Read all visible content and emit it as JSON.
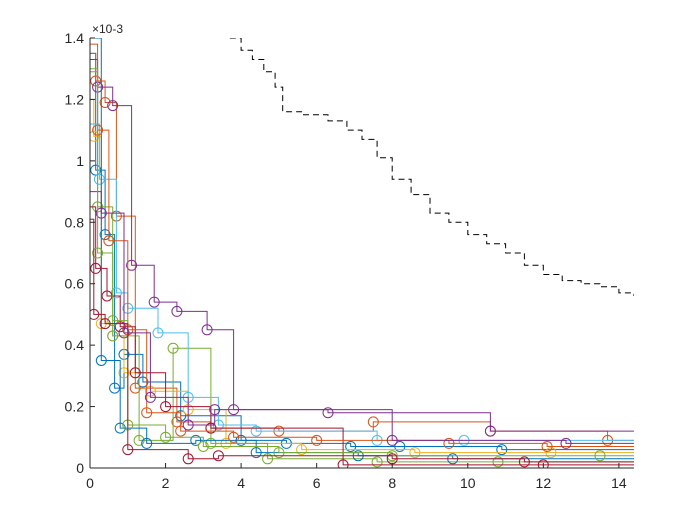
{
  "chart_data": {
    "type": "line",
    "title": "",
    "xlabel": "",
    "ylabel": "",
    "xlim": [
      0,
      14.4
    ],
    "ylim": [
      0,
      0.0014
    ],
    "y_exponent_label": "×10-3",
    "x_ticks": [
      0,
      2,
      4,
      6,
      8,
      10,
      12,
      14
    ],
    "x_tick_labels": [
      "0",
      "2",
      "4",
      "6",
      "8",
      "10",
      "12",
      "14"
    ],
    "y_ticks": [
      0,
      0.0002,
      0.0004,
      0.0006,
      0.0008,
      0.001,
      0.0012,
      0.0014
    ],
    "y_tick_labels": [
      "0",
      "0.2",
      "0.4",
      "0.6",
      "0.8",
      "1",
      "1.2",
      "1.4"
    ],
    "grid": false,
    "legend": "none",
    "line_style": "step-with-circle-markers",
    "colors": [
      "#0072BD",
      "#D95319",
      "#EDB120",
      "#7E2F8E",
      "#77AC30",
      "#4DBEEE",
      "#A2142F"
    ],
    "series": [
      {
        "color": "#0072BD",
        "x": [
          0,
          0.15,
          0.4,
          0.65,
          0.9,
          1.4,
          2.4,
          4.0,
          5.2,
          6.9,
          8.2,
          10.9,
          14.4
        ],
        "y": [
          0.00135,
          0.00097,
          0.00076,
          0.00026,
          0.00037,
          0.00028,
          0.00017,
          9e-05,
          8e-05,
          7e-05,
          7e-05,
          6e-05,
          6e-05
        ]
      },
      {
        "color": "#D95319",
        "x": [
          0,
          0.15,
          0.4,
          0.7,
          1.2,
          2.3,
          3.2,
          5.0,
          7.5,
          10.6,
          13.7,
          14.4
        ],
        "y": [
          0.00135,
          0.00126,
          0.00119,
          0.00082,
          0.00026,
          0.00015,
          0.00013,
          0.00012,
          0.00015,
          0.00012,
          9e-05,
          9e-05
        ]
      },
      {
        "color": "#EDB120",
        "x": [
          0,
          0.1,
          0.3,
          0.6,
          0.9,
          1.6,
          2.6,
          3.6,
          5.6,
          8.6,
          12.2,
          14.4
        ],
        "y": [
          0.0012,
          0.00108,
          0.00047,
          0.00043,
          0.00031,
          0.00025,
          0.00019,
          8e-05,
          6e-05,
          5e-05,
          5e-05,
          5e-05
        ]
      },
      {
        "color": "#7E2F8E",
        "x": [
          0,
          0.2,
          0.6,
          1.1,
          1.7,
          2.3,
          3.1,
          3.8,
          6.3,
          10.6,
          14.4
        ],
        "y": [
          0.00133,
          0.00124,
          0.00118,
          0.00066,
          0.00054,
          0.00051,
          0.00045,
          0.00019,
          0.00018,
          0.00012,
          0.00012
        ]
      },
      {
        "color": "#77AC30",
        "x": [
          0,
          0.2,
          0.6,
          1.3,
          2.2,
          3.2,
          4.7,
          7.6,
          10.8,
          14.4
        ],
        "y": [
          0.00129,
          0.00085,
          0.00043,
          9e-05,
          0.00039,
          8e-05,
          3e-05,
          2e-05,
          2e-05,
          2e-05
        ]
      },
      {
        "color": "#4DBEEE",
        "x": [
          0,
          0.25,
          0.7,
          1.0,
          1.8,
          2.6,
          3.4,
          4.4,
          7.6,
          9.9,
          14.4
        ],
        "y": [
          0.00112,
          0.00094,
          0.00057,
          0.00052,
          0.00044,
          0.00023,
          0.00014,
          0.00012,
          9e-05,
          9e-05,
          9e-05
        ]
      },
      {
        "color": "#A2142F",
        "x": [
          0,
          0.15,
          0.45,
          0.8,
          1.2,
          2.0,
          3.2,
          6.7,
          12.0,
          14.4
        ],
        "y": [
          0.00085,
          0.00065,
          0.00056,
          0.00046,
          0.00031,
          0.0002,
          0.00013,
          1e-05,
          1e-05,
          1e-05
        ]
      },
      {
        "color": "#0072BD",
        "x": [
          0,
          0.3,
          0.8,
          1.5,
          2.8,
          4.4,
          7.1,
          9.6,
          14.4
        ],
        "y": [
          0.0014,
          0.00035,
          0.00013,
          8e-05,
          9e-05,
          5e-05,
          4e-05,
          3e-05,
          3e-05
        ]
      },
      {
        "color": "#D95319",
        "x": [
          0,
          0.2,
          0.5,
          1.0,
          1.5,
          2.4,
          3.8,
          6.0,
          9.5,
          12.1,
          14.4
        ],
        "y": [
          0.00138,
          0.0011,
          0.00074,
          0.00045,
          0.00018,
          0.00012,
          0.0001,
          9e-05,
          8e-05,
          7e-05,
          7e-05
        ]
      },
      {
        "color": "#7E2F8E",
        "x": [
          0,
          0.3,
          0.9,
          1.6,
          2.6,
          3.3,
          8.0,
          12.6,
          14.4
        ],
        "y": [
          0.0009,
          0.00083,
          0.00044,
          0.00023,
          0.00014,
          0.00019,
          9e-05,
          8e-05,
          8e-05
        ]
      },
      {
        "color": "#77AC30",
        "x": [
          0,
          0.2,
          0.6,
          1.0,
          2.0,
          3.0,
          5.0,
          8.0,
          13.5,
          14.4
        ],
        "y": [
          0.0013,
          0.0007,
          0.00048,
          0.00014,
          0.0001,
          7e-05,
          5e-05,
          4e-05,
          4e-05,
          4e-05
        ]
      },
      {
        "color": "#A2142F",
        "x": [
          0,
          0.1,
          0.4,
          1.0,
          2.6,
          3.4,
          8.0,
          11.5,
          14.4
        ],
        "y": [
          0.00081,
          0.0005,
          0.00047,
          6e-05,
          3e-05,
          4e-05,
          3e-05,
          2e-05,
          2e-05
        ]
      },
      {
        "color": "#000000",
        "dashed": true,
        "markers": false,
        "x": [
          3.7,
          4.0,
          4.3,
          4.6,
          4.9,
          5.1,
          5.6,
          6.0,
          6.3,
          6.8,
          7.2,
          7.6,
          8.0,
          8.5,
          9.0,
          9.5,
          10.0,
          10.5,
          11.0,
          11.5,
          12.0,
          12.5,
          13.0,
          13.5,
          14.0,
          14.4
        ],
        "y": [
          0.0014,
          0.00136,
          0.00133,
          0.00129,
          0.00124,
          0.00116,
          0.00115,
          0.00115,
          0.00113,
          0.0011,
          0.00107,
          0.00101,
          0.00094,
          0.00089,
          0.00083,
          0.0008,
          0.00076,
          0.00073,
          0.0007,
          0.00066,
          0.00063,
          0.00061,
          0.0006,
          0.00059,
          0.00057,
          0.00056
        ]
      }
    ]
  }
}
